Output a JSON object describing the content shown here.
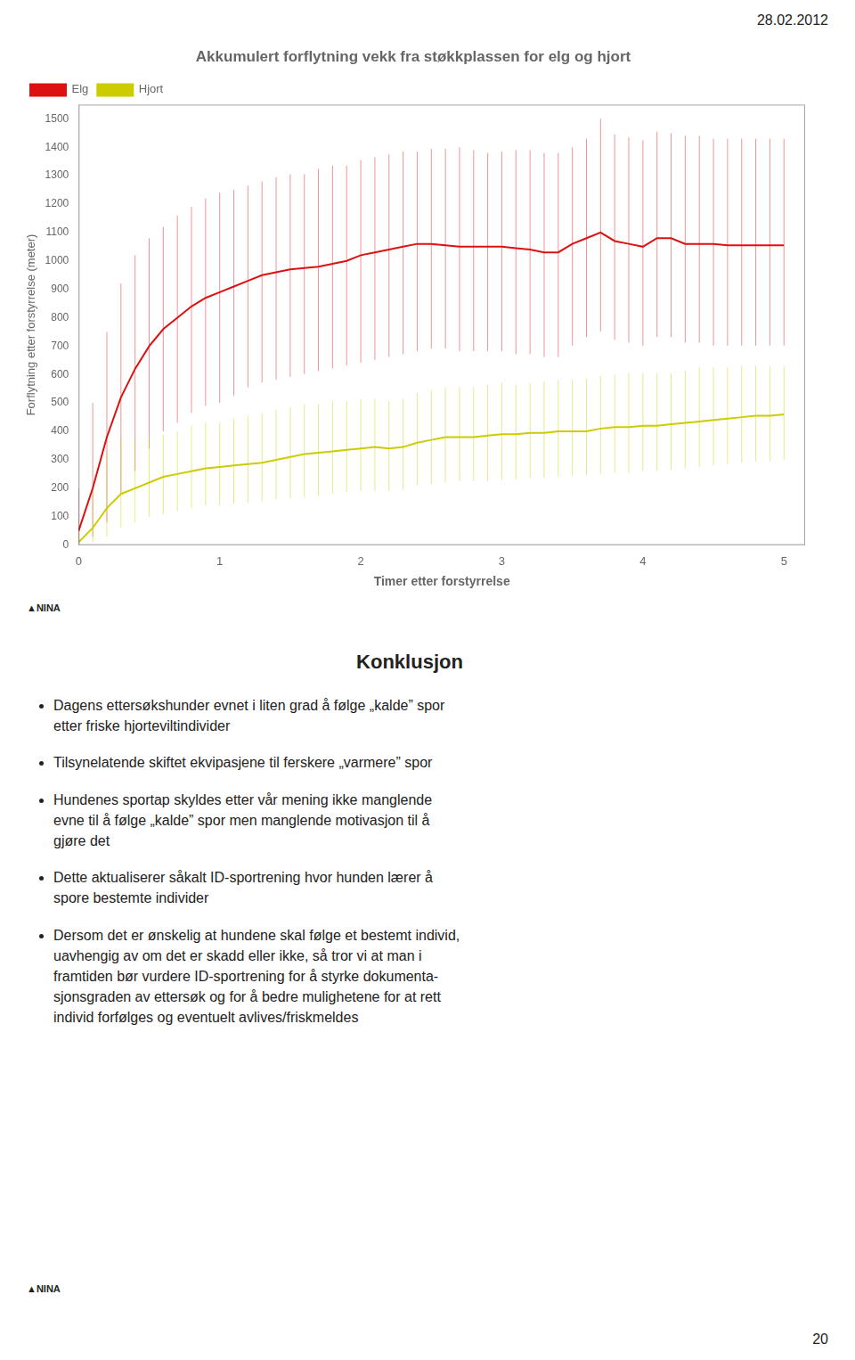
{
  "chart_data": {
    "type": "line",
    "title": "Akkumulert forflytning vekk fra støkkplassen for elg og hjort",
    "xlabel": "Timer etter forstyrrelse",
    "ylabel": "Forflytning etter forstyrrelse (meter)",
    "x": [
      0.0,
      0.1,
      0.2,
      0.3,
      0.4,
      0.5,
      0.6,
      0.7,
      0.8,
      0.9,
      1.0,
      1.1,
      1.2,
      1.3,
      1.4,
      1.5,
      1.6,
      1.7,
      1.8,
      1.9,
      2.0,
      2.1,
      2.2,
      2.3,
      2.4,
      2.5,
      2.6,
      2.7,
      2.8,
      2.9,
      3.0,
      3.1,
      3.2,
      3.3,
      3.4,
      3.5,
      3.6,
      3.7,
      3.8,
      3.9,
      4.0,
      4.1,
      4.2,
      4.3,
      4.4,
      4.5,
      4.6,
      4.7,
      4.8,
      4.9,
      5.0
    ],
    "series": [
      {
        "name": "Elg",
        "color": "#dd1111",
        "values": [
          50,
          200,
          380,
          520,
          620,
          700,
          760,
          800,
          840,
          870,
          890,
          910,
          930,
          950,
          960,
          970,
          975,
          980,
          990,
          1000,
          1020,
          1030,
          1040,
          1050,
          1060,
          1060,
          1055,
          1050,
          1050,
          1050,
          1050,
          1045,
          1040,
          1030,
          1030,
          1060,
          1080,
          1100,
          1070,
          1060,
          1050,
          1080,
          1080,
          1060,
          1060,
          1060,
          1055,
          1055,
          1055,
          1055,
          1055
        ],
        "upper": [
          200,
          500,
          750,
          920,
          1020,
          1080,
          1120,
          1160,
          1190,
          1220,
          1240,
          1250,
          1265,
          1280,
          1295,
          1305,
          1305,
          1325,
          1335,
          1335,
          1355,
          1365,
          1375,
          1385,
          1385,
          1395,
          1395,
          1400,
          1390,
          1380,
          1385,
          1390,
          1390,
          1380,
          1380,
          1400,
          1430,
          1500,
          1445,
          1435,
          1425,
          1455,
          1450,
          1440,
          1440,
          1430,
          1430,
          1430,
          1430,
          1430,
          1430
        ],
        "lower": [
          0,
          30,
          80,
          180,
          260,
          340,
          400,
          430,
          465,
          490,
          500,
          525,
          555,
          572,
          582,
          592,
          602,
          612,
          622,
          632,
          642,
          652,
          662,
          672,
          682,
          692,
          692,
          682,
          682,
          682,
          682,
          672,
          672,
          662,
          662,
          702,
          732,
          752,
          722,
          712,
          702,
          732,
          732,
          712,
          712,
          702,
          702,
          702,
          702,
          702,
          702
        ]
      },
      {
        "name": "Hjort",
        "color": "#cccc00",
        "values": [
          10,
          60,
          130,
          180,
          200,
          220,
          240,
          250,
          260,
          270,
          275,
          280,
          285,
          290,
          300,
          310,
          320,
          325,
          330,
          335,
          340,
          345,
          340,
          345,
          360,
          370,
          380,
          380,
          380,
          385,
          390,
          390,
          395,
          395,
          400,
          400,
          400,
          410,
          415,
          415,
          420,
          420,
          425,
          430,
          435,
          440,
          445,
          450,
          455,
          455,
          460
        ],
        "upper": [
          50,
          200,
          330,
          380,
          380,
          380,
          390,
          400,
          420,
          430,
          430,
          445,
          455,
          465,
          475,
          485,
          495,
          495,
          505,
          505,
          515,
          515,
          505,
          515,
          535,
          545,
          555,
          555,
          555,
          565,
          570,
          565,
          570,
          575,
          580,
          580,
          585,
          595,
          600,
          605,
          605,
          605,
          605,
          615,
          625,
          625,
          625,
          630,
          630,
          630,
          630
        ],
        "lower": [
          0,
          10,
          30,
          60,
          80,
          100,
          110,
          120,
          130,
          140,
          140,
          145,
          150,
          155,
          160,
          165,
          170,
          175,
          180,
          185,
          190,
          190,
          190,
          195,
          210,
          215,
          220,
          225,
          225,
          225,
          230,
          230,
          235,
          235,
          240,
          245,
          245,
          250,
          255,
          255,
          260,
          260,
          265,
          270,
          275,
          280,
          285,
          290,
          295,
          295,
          300
        ]
      }
    ],
    "xlim": [
      0,
      5.15
    ],
    "xticks": [
      0,
      1,
      2,
      3,
      4,
      5
    ],
    "ylim": [
      0,
      1550
    ],
    "yticks": [
      0,
      100,
      200,
      300,
      400,
      500,
      600,
      700,
      800,
      900,
      1000,
      1100,
      1200,
      1300,
      1400,
      1500
    ],
    "grid": false,
    "legend": "upper left",
    "annotations": [
      "28.02.2012",
      "20",
      "▲NINA",
      "Konklusjon",
      "Dagens ettersøkshunder evnet i liten grad å følge „kalde” spor\netter friske hjorteviltindivider",
      "Tilsynelatende skiftet ekvipasjene til ferskere „varmere” spor",
      "Hundenes sportap skyldes etter vår mening ikke manglende\nevne til å følge „kalde” spor men manglende motivasjon til å\ngjøre det",
      "Dette aktualiserer såkalt ID-sportrening hvor hunden lærer å\nspore bestemte individer",
      "Dersom det er ønskelig at hundene skal følge et bestemt individ,\nuavhengig av om det er skadd eller ikke, så tror vi at man i\nframtiden bør vurdere ID-sportrening for å styrke dokumenta-\nsjonsgraden av ettersøk og for å bedre mulighetene for at rett\nindivid forfølges og eventuelt avlives/friskmeldes",
      "▲NINA"
    ]
  }
}
